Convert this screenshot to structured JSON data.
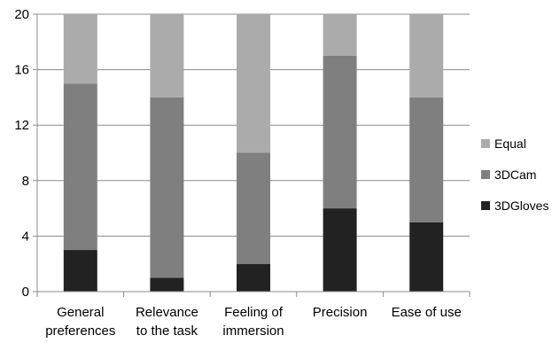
{
  "chart_data": {
    "type": "bar",
    "stacked": true,
    "title": "",
    "xlabel": "",
    "ylabel": "",
    "ylim": [
      0,
      20
    ],
    "yticks": [
      0,
      4,
      8,
      12,
      16,
      20
    ],
    "grid": "horizontal",
    "legend_position": "right",
    "categories": [
      [
        "General",
        "preferences"
      ],
      [
        "Relevance",
        "to the task"
      ],
      [
        "Feeling of",
        "immersion"
      ],
      [
        "Precision"
      ],
      [
        "Ease of use"
      ]
    ],
    "series": [
      {
        "name": "3DGloves",
        "color": "#222222",
        "values": [
          3,
          1,
          2,
          6,
          5
        ]
      },
      {
        "name": "3DCam",
        "color": "#7f7f7f",
        "values": [
          12,
          13,
          8,
          11,
          9
        ]
      },
      {
        "name": "Equal",
        "color": "#ababab",
        "values": [
          5,
          6,
          10,
          3,
          6
        ]
      }
    ]
  }
}
